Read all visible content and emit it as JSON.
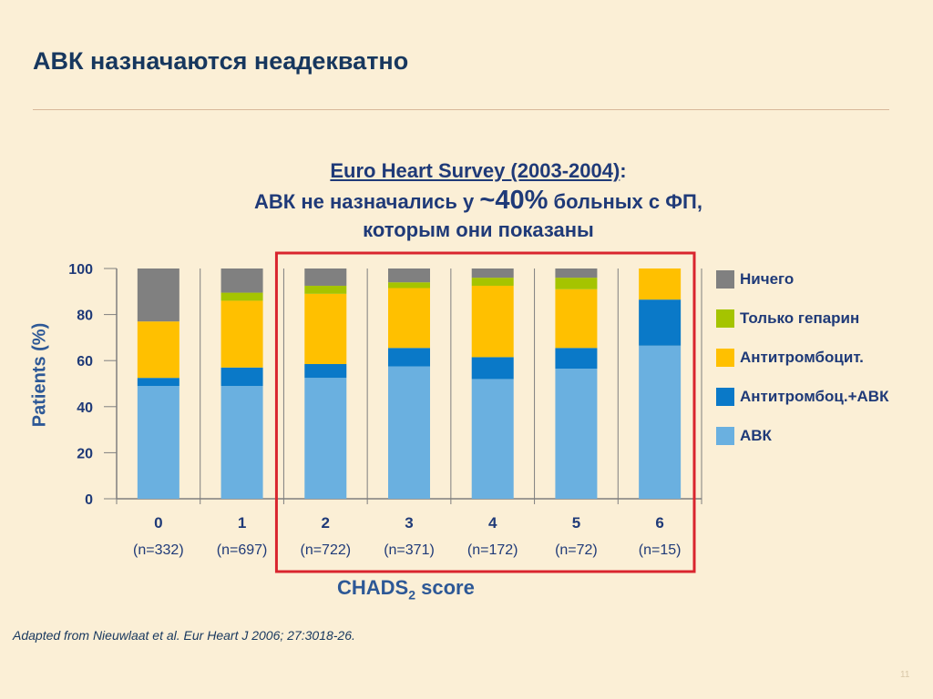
{
  "title": "АВК назначаются неадекватно",
  "subtitle": {
    "survey": "Euro Heart Survey (2003-2004)",
    "colon": ":",
    "line2_pre": "АВК не назначались у ",
    "line2_pct": "~40%",
    "line2_post": " больных с ФП,",
    "line3": "которым они показаны"
  },
  "source": "Adapted from Nieuwlaat et al. Eur Heart J 2006; 27:3018-26.",
  "slide_number": "11",
  "chart_data": {
    "type": "bar",
    "stacked": true,
    "ylabel": "Patients (%)",
    "xlabel": "CHADS",
    "xlabel_sub": "2",
    "xlabel_post": " score",
    "ylim": [
      0,
      100
    ],
    "yticks": [
      0,
      20,
      40,
      60,
      80,
      100
    ],
    "categories": [
      "0",
      "1",
      "2",
      "3",
      "4",
      "5",
      "6"
    ],
    "category_n": [
      "(n=332)",
      "(n=697)",
      "(n=722)",
      "(n=371)",
      "(n=172)",
      "(n=72)",
      "(n=15)"
    ],
    "series": [
      {
        "name": "АВК",
        "color": "#6ab0e0",
        "values": [
          49,
          49,
          52.5,
          57.5,
          52,
          56.5,
          66.5
        ]
      },
      {
        "name": "Антитромбоц.+АВК",
        "color": "#0a79c8",
        "values": [
          3.5,
          8,
          6,
          8,
          9.5,
          9,
          20
        ]
      },
      {
        "name": "Антитромбоцит.",
        "color": "#ffc000",
        "values": [
          24.5,
          29,
          30.5,
          26,
          31,
          25.5,
          13.5
        ]
      },
      {
        "name": "Только гепарин",
        "color": "#a5c400",
        "values": [
          0,
          3.5,
          3.5,
          2.5,
          3.5,
          5,
          0
        ]
      },
      {
        "name": "Ничего",
        "color": "#808080",
        "values": [
          23,
          10.5,
          7.5,
          6,
          4,
          4,
          0
        ]
      }
    ],
    "legend": {
      "position": "right",
      "order": [
        "Ничего",
        "Только гепарин",
        "Антитромбоцит.",
        "Антитромбоц.+АВК",
        "АВК"
      ]
    },
    "highlight_categories": [
      "2",
      "3",
      "4",
      "5",
      "6"
    ],
    "highlight_color": "#d9252e"
  }
}
